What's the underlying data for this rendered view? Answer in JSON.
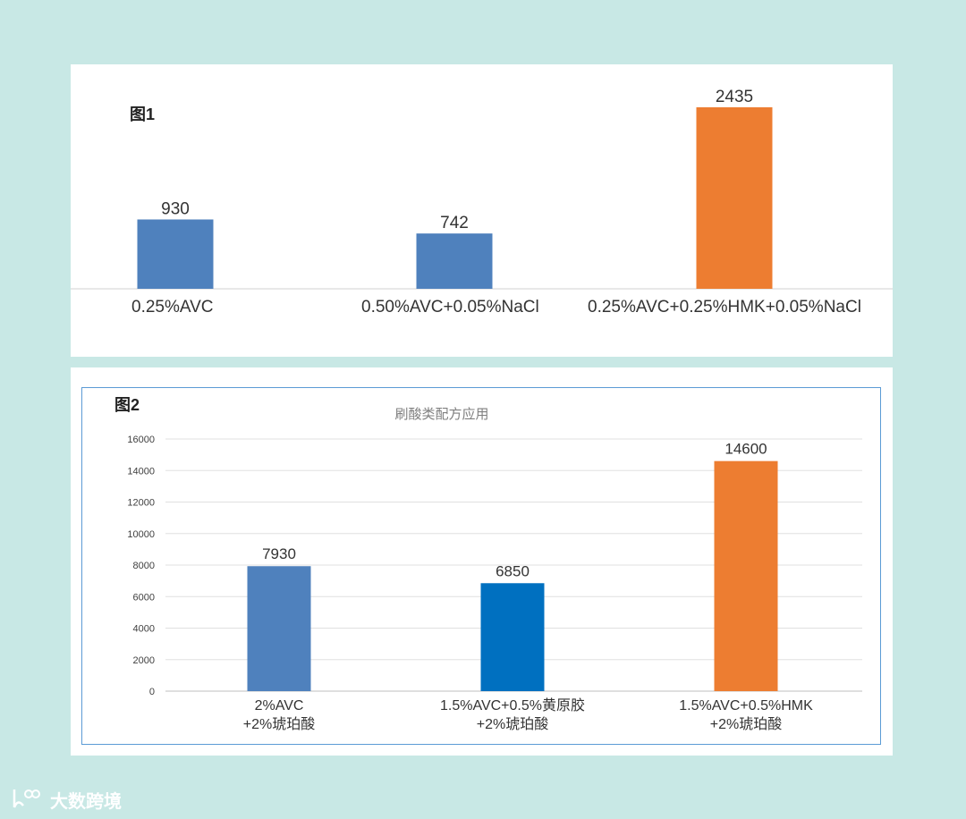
{
  "watermark": {
    "text": "大数跨境",
    "icon": "brand-logo-icon"
  },
  "colors": {
    "background": "#c8e8e5",
    "blue": "#4f81bd",
    "blue_dark": "#0070c0",
    "orange": "#ed7d31"
  },
  "chart_data": [
    {
      "type": "bar",
      "label": "图1",
      "title": "",
      "categories": [
        "0.25%AVC",
        "0.50%AVC+0.05%NaCl",
        "0.25%AVC+0.25%HMK+0.05%NaCl"
      ],
      "values": [
        930,
        742,
        2435
      ],
      "colors": [
        "#4f81bd",
        "#4f81bd",
        "#ed7d31"
      ],
      "data_labels": [
        "930",
        "742",
        "2435"
      ],
      "ylim": [
        0,
        2435
      ],
      "y_axis_visible": false,
      "grid": false
    },
    {
      "type": "bar",
      "label": "图2",
      "title": "刷酸类配方应用",
      "categories": [
        [
          "2%AVC",
          "+2%琥珀酸"
        ],
        [
          "1.5%AVC+0.5%黄原胶",
          "+2%琥珀酸"
        ],
        [
          "1.5%AVC+0.5%HMK",
          "+2%琥珀酸"
        ]
      ],
      "values": [
        7930,
        6850,
        14600
      ],
      "colors": [
        "#4f81bd",
        "#0070c0",
        "#ed7d31"
      ],
      "data_labels": [
        "7930",
        "6850",
        "14600"
      ],
      "ylim": [
        0,
        16000
      ],
      "yticks": [
        "0",
        "2000",
        "4000",
        "6000",
        "8000",
        "10000",
        "12000",
        "14000",
        "16000"
      ],
      "grid": true
    }
  ]
}
